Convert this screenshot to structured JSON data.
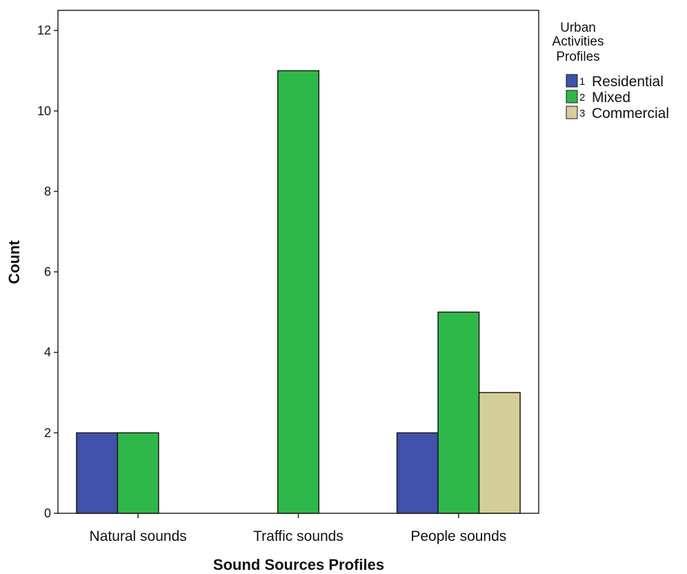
{
  "chart_data": {
    "type": "bar",
    "title": "",
    "xlabel": "Sound Sources Profiles",
    "ylabel": "Count",
    "ylim": [
      0,
      12.5
    ],
    "yticks": [
      0,
      2,
      4,
      6,
      8,
      10,
      12
    ],
    "grid": false,
    "legend_position": "right",
    "legend_title": [
      "Urban",
      "Activities",
      "Profiles"
    ],
    "categories": [
      "Natural sounds",
      "Traffic sounds",
      "People sounds"
    ],
    "series": [
      {
        "code": "1",
        "name": "Residential",
        "color": "#3f51a8",
        "values": [
          2,
          null,
          2
        ]
      },
      {
        "code": "2",
        "name": "Mixed",
        "color": "#2fb84a",
        "values": [
          2,
          11,
          5
        ]
      },
      {
        "code": "3",
        "name": "Commercial",
        "color": "#d4cf9a",
        "values": [
          null,
          null,
          3
        ]
      }
    ]
  }
}
